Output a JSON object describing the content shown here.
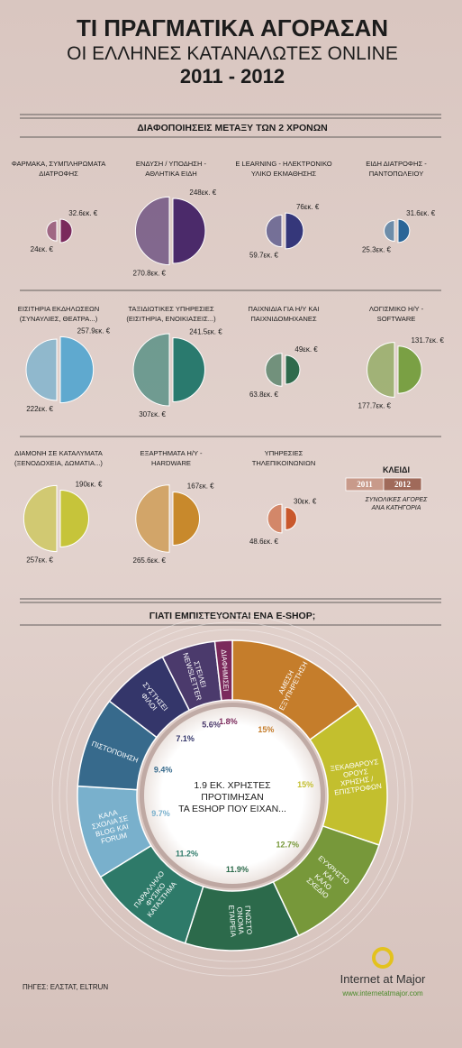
{
  "header": {
    "title": [
      "ΤΙ ΠΡΑΓΜΑΤΙΚΑ ΑΓΟΡΑΣΑΝ",
      "ΟΙ ΕΛΛΗΝΕΣ ΚΑΤΑΝΑΛΩΤΕΣ ONLINE",
      "2011 - 2012"
    ]
  },
  "comparison": {
    "title": "ΔΙΑΦΟΠΟΙΗΣΕΙΣ ΜΕΤΑΞΥ ΤΩΝ 2 ΧΡΟΝΩΝ",
    "items": [
      {
        "label": [
          "ΦΑΡΜΑΚΑ, ΣΥΜΠΛΗΡΩΜΑΤΑ",
          "ΔΙΑΤΡΟΦΗΣ"
        ],
        "color": "#7a2a5c",
        "y2011": {
          "value": 24,
          "label": "24εκ. €"
        },
        "y2012": {
          "value": 32.6,
          "label": "32.6εκ. €"
        }
      },
      {
        "label": [
          "ΕΝΔΥΣΗ / ΥΠΟΔΗΣΗ -",
          "ΑΘΛΗΤΙΚΑ ΕΙΔΗ"
        ],
        "color": "#4b2a6a",
        "y2011": {
          "value": 270.8,
          "label": "270.8εκ. €"
        },
        "y2012": {
          "value": 248,
          "label": "248εκ. €"
        }
      },
      {
        "label": [
          "E LEARNING - ΗΛΕΚΤΡΟΝΙΚΟ",
          "ΥΛΙΚΟ ΕΚΜΑΘΗΣΗΣ"
        ],
        "color": "#35377a",
        "y2011": {
          "value": 59.7,
          "label": "59.7εκ. €"
        },
        "y2012": {
          "value": 76,
          "label": "76εκ. €"
        }
      },
      {
        "label": [
          "ΕΙΔΗ ΔΙΑΤΡΟΦΗΣ -",
          "ΠΑΝΤΟΠΩΛΕΙΟΥ"
        ],
        "color": "#2a6597",
        "y2011": {
          "value": 25.3,
          "label": "25.3εκ. €"
        },
        "y2012": {
          "value": 31.6,
          "label": "31.6εκ. €"
        }
      },
      {
        "label": [
          "ΕΙΣΙΤΗΡΙΑ ΕΚΔΗΛΩΣΕΩΝ",
          "(ΣΥΝΑΥΛΙΕΣ, ΘΕΑΤΡΑ...)"
        ],
        "color": "#5fa9cf",
        "y2011": {
          "value": 222,
          "label": "222εκ. €"
        },
        "y2012": {
          "value": 257.9,
          "label": "257.9εκ. €"
        }
      },
      {
        "label": [
          "ΤΑΞΙΔΙΩΤΙΚΕΣ ΥΠΗΡΕΣΙΕΣ",
          "(ΕΙΣΙΤΗΡΙΑ, ΕΝΟΙΚΙΑΣΕΙΣ...)"
        ],
        "color": "#2a7a6e",
        "y2011": {
          "value": 307,
          "label": "307εκ. €"
        },
        "y2012": {
          "value": 241.5,
          "label": "241.5εκ. €"
        }
      },
      {
        "label": [
          "ΠΑΙΧΝΙΔΙΑ ΓΙΑ Η/Υ ΚΑΙ",
          "ΠΑΙΧΝΙΔΟΜΗΧΑΝΕΣ"
        ],
        "color": "#2f6a4c",
        "y2011": {
          "value": 63.8,
          "label": "63.8εκ. €"
        },
        "y2012": {
          "value": 49,
          "label": "49εκ. €"
        }
      },
      {
        "label": [
          "ΛΟΓΙΣΜΙΚΟ Η/Υ -",
          "SOFTWARE"
        ],
        "color": "#7aa044",
        "y2011": {
          "value": 177.7,
          "label": "177.7εκ. €"
        },
        "y2012": {
          "value": 131.7,
          "label": "131.7εκ. €"
        }
      },
      {
        "label": [
          "ΔΙΑΜΟΝΗ ΣΕ ΚΑΤΑΛΥΜΑΤΑ",
          "(ΞΕΝΟΔΟΧΕΙΑ, ΔΩΜΑΤΙΑ...)"
        ],
        "color": "#c6c43a",
        "y2011": {
          "value": 257,
          "label": "257εκ. €"
        },
        "y2012": {
          "value": 190,
          "label": "190εκ. €"
        }
      },
      {
        "label": [
          "ΕΞΑΡΤΗΜΑΤΑ Η/Υ -",
          "HARDWARE"
        ],
        "color": "#c8892c",
        "y2011": {
          "value": 265.6,
          "label": "265.6εκ. €"
        },
        "y2012": {
          "value": 167,
          "label": "167εκ. €"
        }
      },
      {
        "label": [
          "ΥΠΗΡΕΣΙΕΣ",
          "ΤΗΛΕΠΙΚΟΙΝΩΝΙΩΝ"
        ],
        "color": "#c9582c",
        "y2011": {
          "value": 48.6,
          "label": "48.6εκ. €"
        },
        "y2012": {
          "value": 30,
          "label": "30εκ. €"
        }
      }
    ],
    "key": {
      "title": "ΚΛΕΙΔΙ",
      "years": [
        "2011",
        "2012"
      ],
      "note": [
        "ΣΥΝΟΛΙΚΕΣ ΑΓΟΡΕΣ",
        "ΑΝΑ ΚΑΤΗΓΟΡΙΑ"
      ]
    }
  },
  "trust": {
    "title": "ΓΙΑΤΙ ΕΜΠΙΣΤΕΥΟΝΤΑΙ ΕΝΑ E-SHOP;",
    "center": [
      "1.9 ΕΚ. ΧΡΗΣΤΕΣ",
      "ΠΡΟΤΙΜΗΣΑΝ",
      "ΤΑ ESHOP ΠΟΥ ΕΙΧΑΝ..."
    ],
    "segments": [
      {
        "label": [
          "ΑΜΕΣΗ",
          "ΕΞΥΠΗΡΕΤΗΣΗ"
        ],
        "value": 15,
        "value_label": "15%",
        "color": "#c57d2b"
      },
      {
        "label": [
          "ΞΕΚΑΘΑΡΟΥΣ",
          "ΟΡΟΥΣ",
          "ΧΡΗΣΗΣ /",
          "ΕΠΙΣΤΡΟΦΩΝ"
        ],
        "value": 15,
        "value_label": "15%",
        "color": "#c3bf2e"
      },
      {
        "label": [
          "ΕΥΧΡΗΣΤΟ",
          "ΚΑΙ",
          "ΚΑΛΟ",
          "ΣΧΕΔΙΟ"
        ],
        "value": 12.7,
        "value_label": "12.7%",
        "color": "#77983a"
      },
      {
        "label": [
          "ΓΝΩΣΤΟ",
          "ΟΝΟΜΑ",
          "ΕΤΑΙΡΕΙΑ"
        ],
        "value": 11.9,
        "value_label": "11.9%",
        "color": "#2c6a4b"
      },
      {
        "label": [
          "ΠΑΡΑΛΛΗΛΟ",
          "ΦΥΣΙΚΟ",
          "ΚΑΤΑΣΤΗΜΑ"
        ],
        "value": 11.2,
        "value_label": "11.2%",
        "color": "#2e7a69"
      },
      {
        "label": [
          "ΚΑΛΑ",
          "ΣΧΟΛΙΑ ΣΕ",
          "BLOG ΚΑΙ",
          "FORUM"
        ],
        "value": 9.7,
        "value_label": "9.7%",
        "color": "#79b0cc"
      },
      {
        "label": [
          "ΠΙΣΤΟΠΟΙΗΣΗ"
        ],
        "value": 9.4,
        "value_label": "9.4%",
        "color": "#376a8c"
      },
      {
        "label": [
          "ΣΥΣΤΗΣΕΙ",
          "ΦΙΛΟΙ"
        ],
        "value": 7.1,
        "value_label": "7.1%",
        "color": "#34366a"
      },
      {
        "label": [
          "ΣΤΕΙΛΕΙ",
          "NEWSLETTER"
        ],
        "value": 5.6,
        "value_label": "5.6%",
        "color": "#4b3a6c"
      },
      {
        "label": [
          "ΔΙΑΦΗΜΙΣΕΙ"
        ],
        "value": 1.8,
        "value_label": "1.8%",
        "color": "#7b2a5c"
      }
    ]
  },
  "footer": {
    "sources": "ΠΗΓΕΣ: ΕΛΣΤΑΤ, ELTRUN",
    "brand": "Internet at Major",
    "url": "www.internetatmajor.com"
  }
}
